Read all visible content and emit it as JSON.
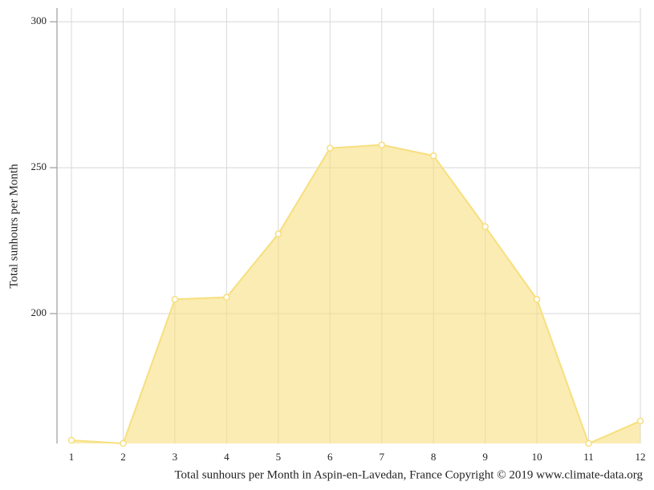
{
  "chart_data": {
    "type": "area",
    "y_label": "Total sunhours per Month",
    "x_label": "Total sunhours per Month in Aspin-en-Lavedan, France Copyright © 2019 www.climate-data.org",
    "x": [
      1,
      2,
      3,
      4,
      5,
      6,
      7,
      8,
      9,
      10,
      11,
      12
    ],
    "xlim": [
      1,
      12
    ],
    "xticks": [
      1,
      2,
      3,
      4,
      5,
      6,
      7,
      8,
      9,
      10,
      11,
      12
    ],
    "series": [
      {
        "name": "Total sunhours per Month",
        "color": "#f7df7f",
        "values": [
          156.6,
          155.5,
          204.9,
          205.6,
          227.3,
          256.7,
          257.8,
          254.1,
          229.8,
          204.9,
          155.5,
          163.2
        ]
      }
    ],
    "ylim": [
      155.5,
      304.7
    ],
    "yticks": [
      200,
      250,
      300
    ],
    "grid": true
  }
}
